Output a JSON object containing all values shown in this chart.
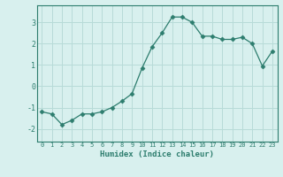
{
  "x": [
    0,
    1,
    2,
    3,
    4,
    5,
    6,
    7,
    8,
    9,
    10,
    11,
    12,
    13,
    14,
    15,
    16,
    17,
    18,
    19,
    20,
    21,
    22,
    23
  ],
  "y": [
    -1.2,
    -1.3,
    -1.8,
    -1.6,
    -1.3,
    -1.3,
    -1.2,
    -1.0,
    -0.7,
    -0.35,
    0.85,
    1.85,
    2.5,
    3.25,
    3.25,
    3.0,
    2.35,
    2.35,
    2.2,
    2.2,
    2.3,
    2.0,
    0.95,
    1.65
  ],
  "xlabel": "Humidex (Indice chaleur)",
  "ylim": [
    -2.6,
    3.8
  ],
  "xlim": [
    -0.5,
    23.5
  ],
  "line_color": "#2d7d6e",
  "marker": "D",
  "marker_size": 2.5,
  "bg_color": "#d8f0ee",
  "grid_color": "#b8dbd8",
  "label_color": "#2d7d6e",
  "yticks": [
    -2,
    -1,
    0,
    1,
    2,
    3
  ],
  "xticks": [
    0,
    1,
    2,
    3,
    4,
    5,
    6,
    7,
    8,
    9,
    10,
    11,
    12,
    13,
    14,
    15,
    16,
    17,
    18,
    19,
    20,
    21,
    22,
    23
  ]
}
